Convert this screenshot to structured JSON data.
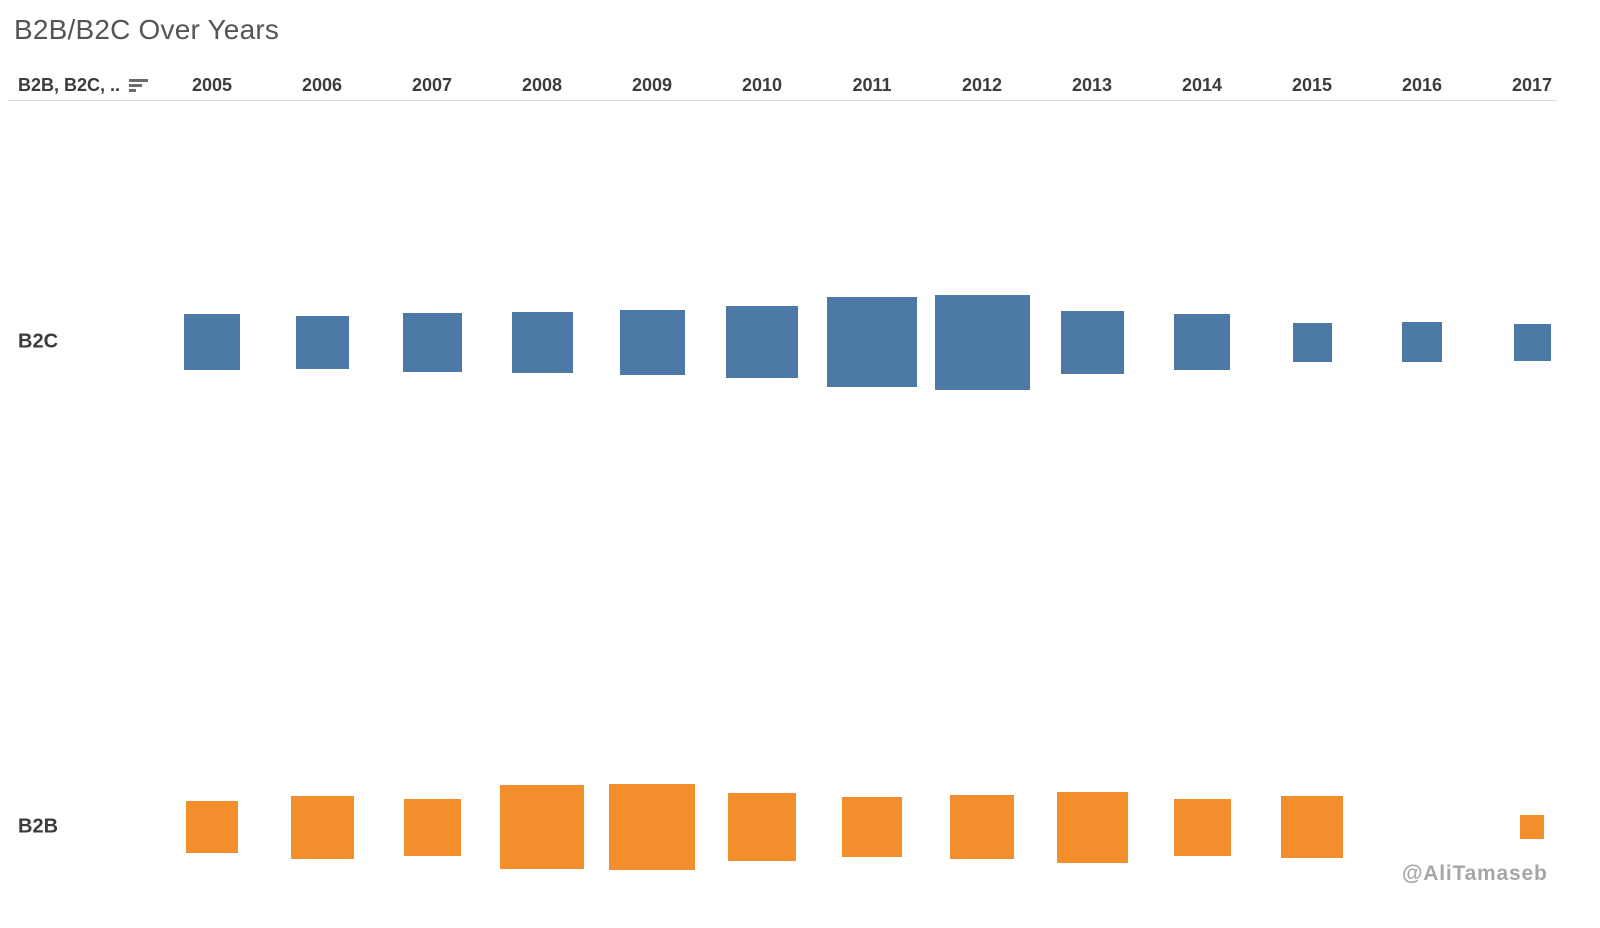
{
  "title": "B2B/B2C Over Years",
  "header": {
    "row_field_label": "B2B, B2C, ..",
    "sort_icon": "sort-descending-icon"
  },
  "watermark": "@AliTamaseb",
  "colors": {
    "b2c": "#4d79a7",
    "b2b": "#f28e2c",
    "title_text": "#555555",
    "header_text": "#3c3c3c",
    "divider": "#dcdcdc",
    "watermark_text": "#a6a6a6"
  },
  "chart_data": {
    "type": "heatmap",
    "title": "B2B/B2C Over Years",
    "encoding": "square mark sized by value; no numeric labels shown",
    "categories": [
      "2005",
      "2006",
      "2007",
      "2008",
      "2009",
      "2010",
      "2011",
      "2012",
      "2013",
      "2014",
      "2015",
      "2016",
      "2017"
    ],
    "rows": [
      "B2C",
      "B2B"
    ],
    "legend": "none",
    "gridlines": false,
    "series": [
      {
        "name": "B2C",
        "color": "#4d79a7",
        "square_size_px": [
          56,
          53,
          59,
          61,
          65,
          72,
          90,
          95,
          63,
          56,
          39,
          40,
          37
        ]
      },
      {
        "name": "B2B",
        "color": "#f28e2c",
        "square_size_px": [
          52,
          63,
          57,
          84,
          86,
          68,
          60,
          64,
          71,
          57,
          62,
          0,
          24
        ]
      }
    ]
  }
}
